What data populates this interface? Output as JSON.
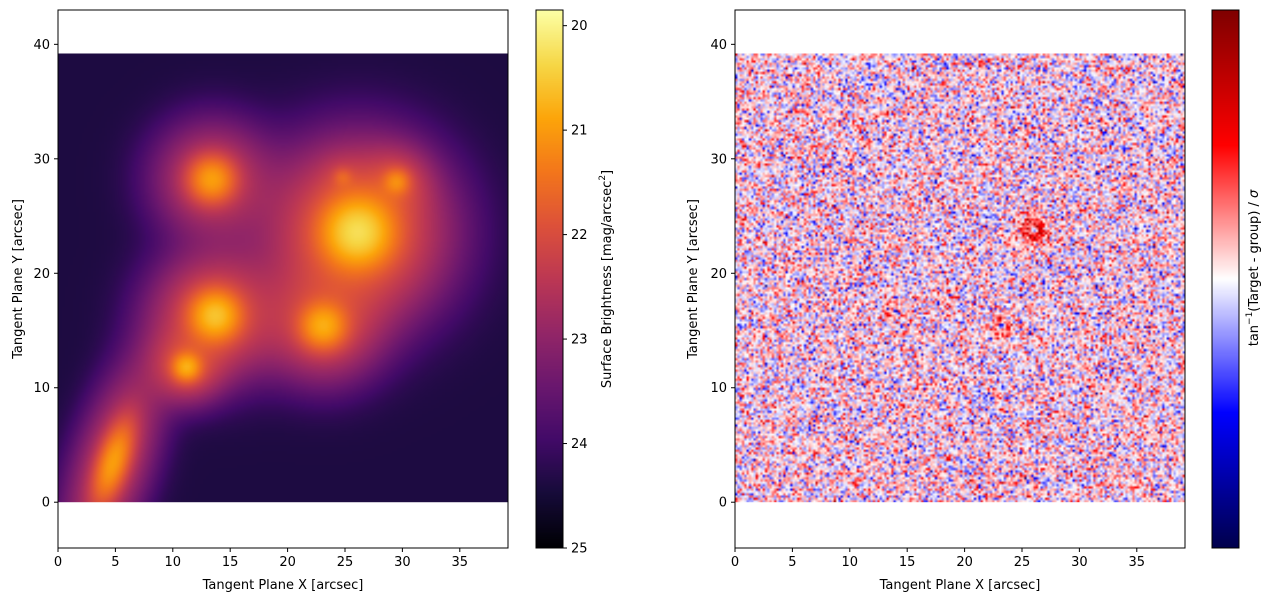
{
  "chart_data": [
    {
      "type": "heatmap",
      "xlabel": "Tangent Plane X [arcsec]",
      "ylabel": "Tangent Plane Y [arcsec]",
      "xlim": [
        0,
        39.2
      ],
      "ylim": [
        -4,
        43
      ],
      "data_extent": {
        "x": [
          0,
          39.2
        ],
        "y": [
          0,
          39.2
        ]
      },
      "xticks": [
        "0",
        "5",
        "10",
        "15",
        "20",
        "25",
        "30",
        "35"
      ],
      "yticks": [
        "0",
        "10",
        "20",
        "30",
        "40"
      ],
      "colormap": "inferno-like (reversed magnitude)",
      "background_mag": 24.4,
      "sources": [
        {
          "x": 4.8,
          "y": 3.5,
          "peak_mag": 21.0,
          "sigma_major": 2.2,
          "sigma_minor": 0.8,
          "angle_deg": 72
        },
        {
          "x": 11.2,
          "y": 11.8,
          "peak_mag": 20.9,
          "sigma_major": 0.75,
          "sigma_minor": 0.75,
          "angle_deg": 0
        },
        {
          "x": 13.7,
          "y": 16.3,
          "peak_mag": 20.6,
          "sigma_major": 1.3,
          "sigma_minor": 1.3,
          "angle_deg": 0
        },
        {
          "x": 13.4,
          "y": 28.2,
          "peak_mag": 21.0,
          "sigma_major": 1.2,
          "sigma_minor": 1.2,
          "angle_deg": 0
        },
        {
          "x": 23.1,
          "y": 15.4,
          "peak_mag": 20.9,
          "sigma_major": 1.2,
          "sigma_minor": 1.2,
          "angle_deg": 0
        },
        {
          "x": 26.1,
          "y": 23.6,
          "peak_mag": 20.3,
          "sigma_major": 1.8,
          "sigma_minor": 1.8,
          "angle_deg": 0
        },
        {
          "x": 29.5,
          "y": 28.0,
          "peak_mag": 21.5,
          "sigma_major": 0.7,
          "sigma_minor": 0.7,
          "angle_deg": 0
        },
        {
          "x": 24.8,
          "y": 28.4,
          "peak_mag": 22.5,
          "sigma_major": 0.5,
          "sigma_minor": 0.5,
          "angle_deg": 0
        }
      ],
      "colorbar": {
        "label": "Surface Brightness [mag/arcsec",
        "label_sup": "2",
        "label_end": "]",
        "range": [
          19.85,
          25
        ],
        "ticks": [
          "20",
          "21",
          "22",
          "23",
          "24",
          "25"
        ],
        "inverted": true
      }
    },
    {
      "type": "heatmap",
      "xlabel": "Tangent Plane X [arcsec]",
      "ylabel": "Tangent Plane Y [arcsec]",
      "xlim": [
        0,
        39.2
      ],
      "ylim": [
        -4,
        43
      ],
      "data_extent": {
        "x": [
          0,
          39.2
        ],
        "y": [
          0,
          39.2
        ]
      },
      "xticks": [
        "0",
        "5",
        "10",
        "15",
        "20",
        "25",
        "30",
        "35"
      ],
      "yticks": [
        "0",
        "10",
        "20",
        "30",
        "40"
      ],
      "colormap": "seismic",
      "noise_sigma": 0.35,
      "background_bias": 0.05,
      "residual_features": [
        {
          "x": 26.1,
          "y": 23.7,
          "amplitude": 0.9,
          "radius": 0.9,
          "center_amplitude": -1.0
        },
        {
          "x": 23.2,
          "y": 15.4,
          "amplitude": 0.7,
          "radius": 0.7,
          "center_amplitude": -0.9
        },
        {
          "x": 14.0,
          "y": 16.6,
          "amplitude": 0.6,
          "radius": 0.5,
          "center_amplitude": -0.8
        }
      ],
      "colorbar": {
        "label_prefix": "tan",
        "label_sup": "−1",
        "label_rest": "(Target - group) / ",
        "label_sigma": "σ",
        "range": [
          -1.5708,
          1.5708
        ],
        "ticks": []
      }
    }
  ]
}
